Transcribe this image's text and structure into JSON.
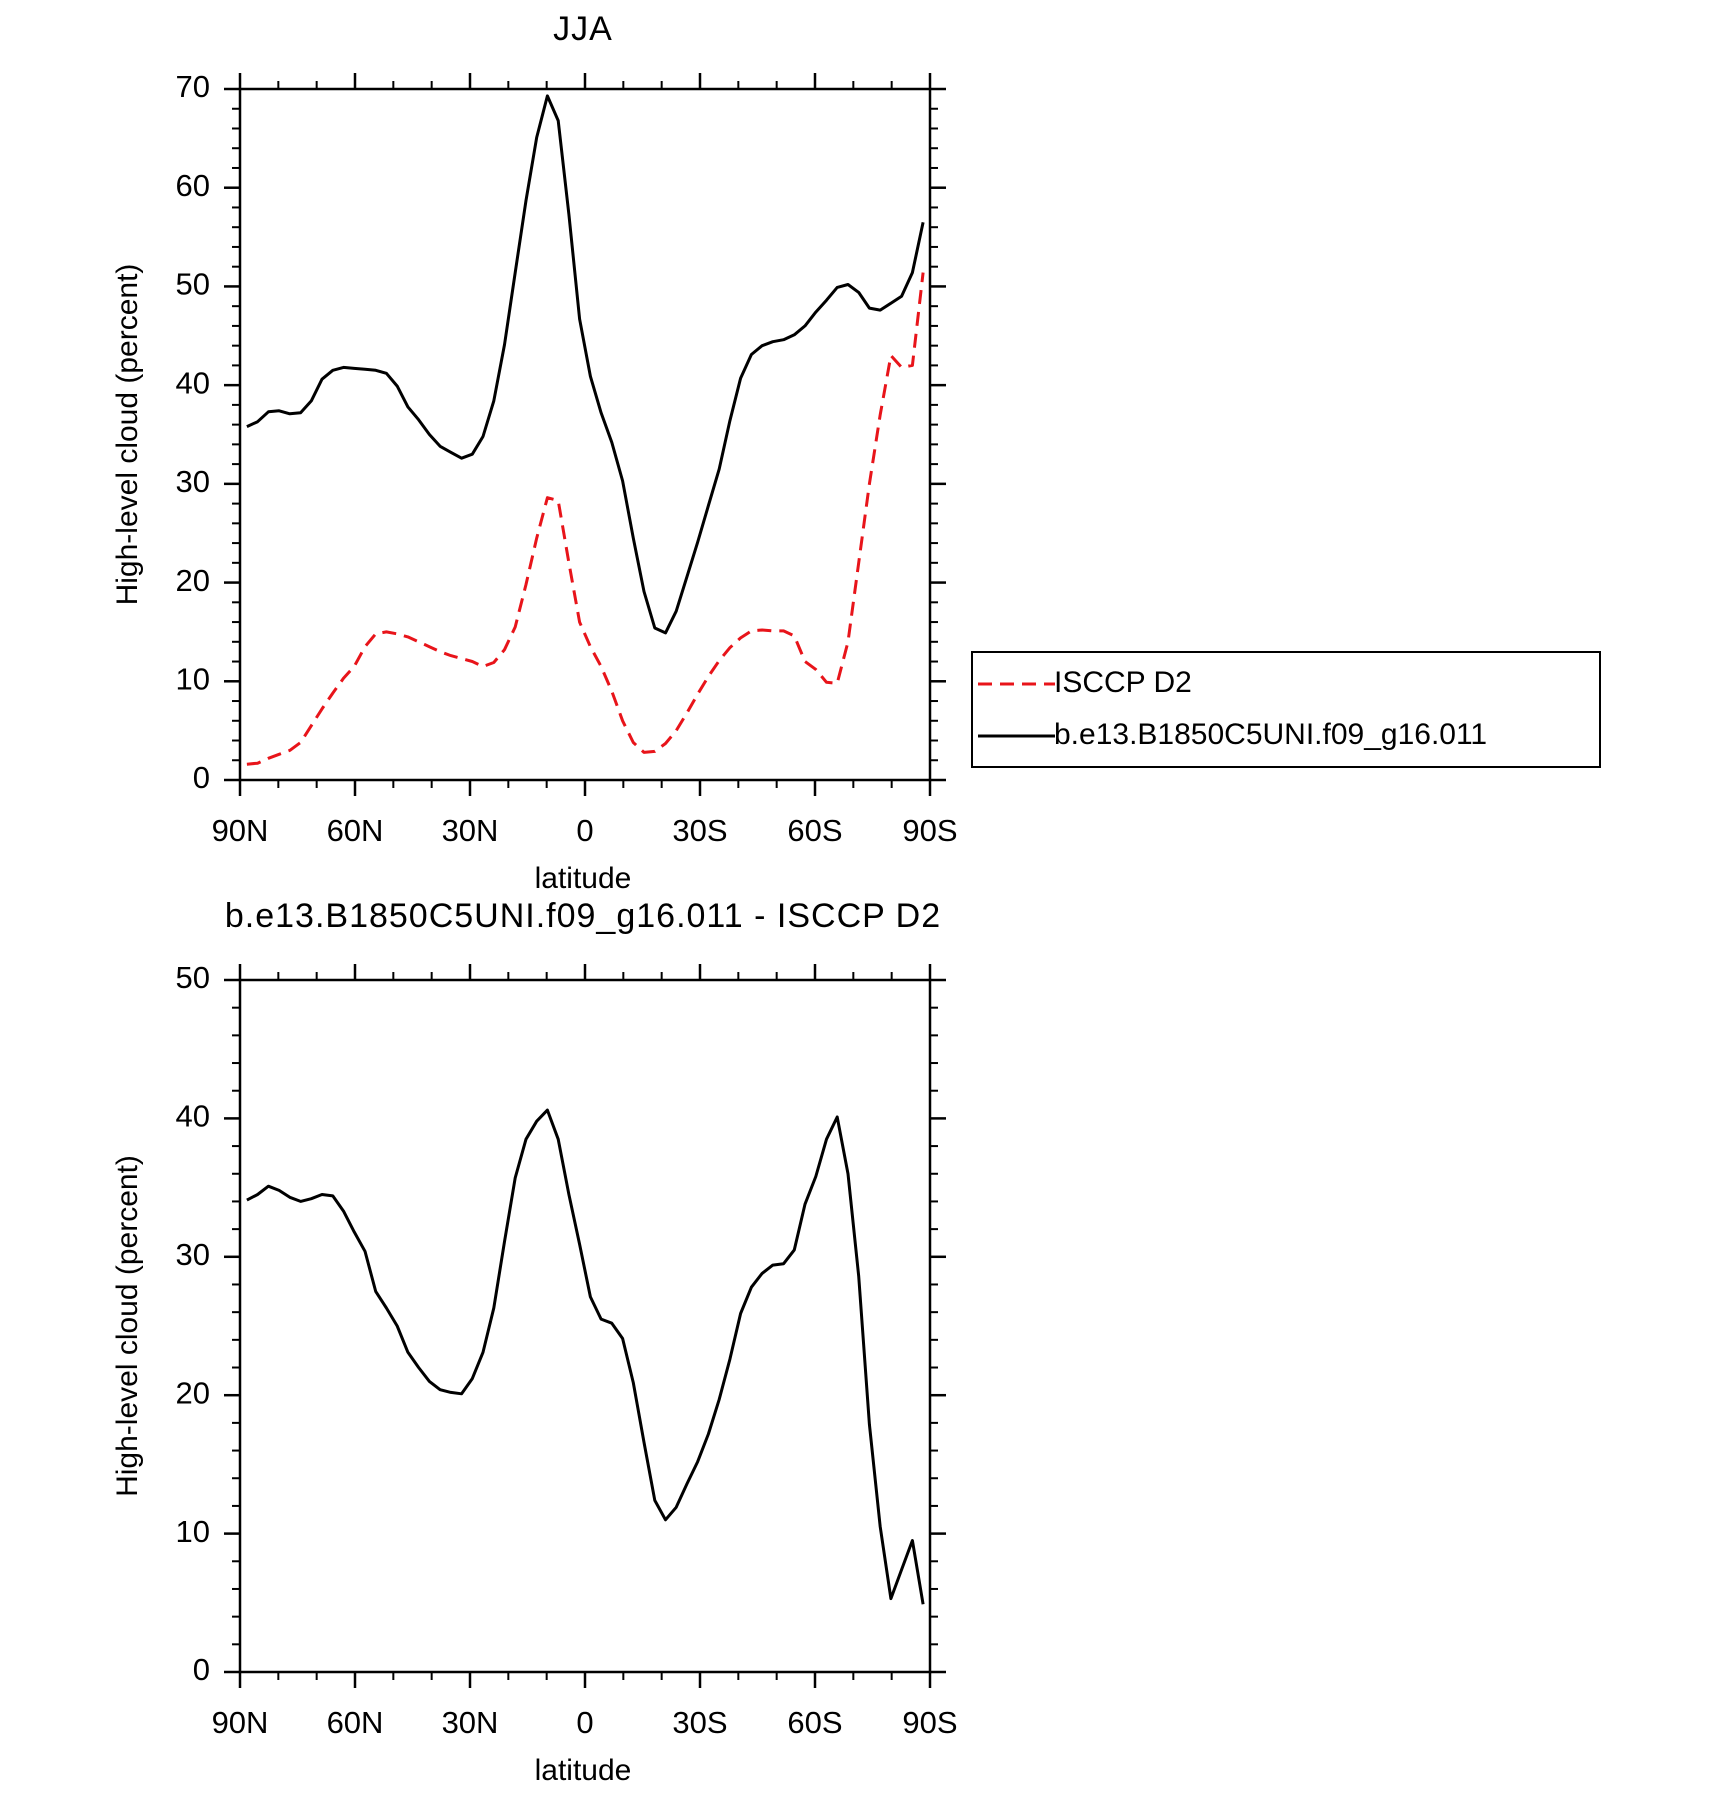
{
  "chart_data": [
    {
      "type": "line",
      "title": "JJA",
      "xlabel": "latitude",
      "ylabel": "High-level cloud (percent)",
      "x": [
        88.2,
        85.4,
        82.6,
        79.8,
        77.0,
        74.2,
        71.4,
        68.6,
        65.8,
        63.0,
        60.2,
        57.4,
        54.6,
        51.8,
        49.0,
        46.2,
        43.4,
        40.6,
        37.8,
        35.0,
        32.2,
        29.4,
        26.6,
        23.8,
        21.0,
        18.2,
        15.4,
        12.6,
        9.8,
        7.0,
        4.2,
        1.4,
        -1.4,
        -4.2,
        -7.0,
        -9.8,
        -12.6,
        -15.4,
        -18.2,
        -21.0,
        -23.8,
        -26.6,
        -29.4,
        -32.2,
        -35.0,
        -37.8,
        -40.6,
        -43.4,
        -46.2,
        -49.0,
        -51.8,
        -54.6,
        -57.4,
        -60.2,
        -63.0,
        -65.8,
        -68.6,
        -71.4,
        -74.2,
        -77.0,
        -79.8,
        -82.6,
        -85.4,
        -88.2
      ],
      "series": [
        {
          "name": "ISCCP D2",
          "color": "#e8141a",
          "line_style": "dashed",
          "values": [
            1.6,
            1.7,
            2.2,
            2.6,
            3.0,
            3.8,
            5.5,
            7.2,
            8.8,
            10.3,
            11.5,
            13.5,
            14.8,
            15.0,
            14.8,
            14.5,
            14.0,
            13.5,
            13.0,
            12.6,
            12.3,
            12.0,
            11.5,
            11.9,
            13.2,
            15.5,
            19.8,
            24.5,
            28.6,
            28.3,
            22.0,
            16.0,
            13.5,
            11.5,
            9.0,
            6.0,
            3.8,
            2.8,
            2.9,
            3.7,
            5.0,
            6.8,
            8.7,
            10.5,
            12.1,
            13.4,
            14.4,
            15.1,
            15.2,
            15.1,
            15.1,
            14.6,
            12.0,
            11.2,
            9.9,
            9.8,
            14.0,
            22.0,
            30.0,
            37.0,
            43.0,
            41.8,
            42.0,
            51.4
          ]
        },
        {
          "name": "b.e13.B1850C5UNI.f09_g16.011",
          "color": "#000000",
          "line_style": "solid",
          "values": [
            35.8,
            36.3,
            37.3,
            37.4,
            37.1,
            37.2,
            38.4,
            40.6,
            41.5,
            41.8,
            41.7,
            41.6,
            41.5,
            41.2,
            39.9,
            37.8,
            36.5,
            35.0,
            33.8,
            33.2,
            32.6,
            33.0,
            34.8,
            38.4,
            44.1,
            51.4,
            58.7,
            65.1,
            69.3,
            66.8,
            57.3,
            46.7,
            40.9,
            37.2,
            34.2,
            30.3,
            24.5,
            19.1,
            15.4,
            14.9,
            17.1,
            20.6,
            24.1,
            27.8,
            31.5,
            36.4,
            40.7,
            43.1,
            44.0,
            44.4,
            44.6,
            45.1,
            46.0,
            47.4,
            48.6,
            49.9,
            50.2,
            49.4,
            47.8,
            47.6,
            48.3,
            49.0,
            51.4,
            56.5
          ]
        }
      ],
      "xlim": [
        90,
        -90
      ],
      "xticks": [
        {
          "value": 90,
          "label": "90N"
        },
        {
          "value": 60,
          "label": "60N"
        },
        {
          "value": 30,
          "label": "30N"
        },
        0,
        {
          "value": -30,
          "label": "30S"
        },
        {
          "value": -60,
          "label": "60S"
        },
        {
          "value": -90,
          "label": "90S"
        }
      ],
      "ylim": [
        0,
        70
      ],
      "yticks": [
        0,
        10,
        20,
        30,
        40,
        50,
        60,
        70
      ],
      "legend": "right"
    },
    {
      "type": "line",
      "title": "b.e13.B1850C5UNI.f09_g16.011 - ISCCP D2",
      "xlabel": "latitude",
      "ylabel": "High-level cloud (percent)",
      "x": [
        88.2,
        85.4,
        82.6,
        79.8,
        77.0,
        74.2,
        71.4,
        68.6,
        65.8,
        63.0,
        60.2,
        57.4,
        54.6,
        51.8,
        49.0,
        46.2,
        43.4,
        40.6,
        37.8,
        35.0,
        32.2,
        29.4,
        26.6,
        23.8,
        21.0,
        18.2,
        15.4,
        12.6,
        9.8,
        7.0,
        4.2,
        1.4,
        -1.4,
        -4.2,
        -7.0,
        -9.8,
        -12.6,
        -15.4,
        -18.2,
        -21.0,
        -23.8,
        -26.6,
        -29.4,
        -32.2,
        -35.0,
        -37.8,
        -40.6,
        -43.4,
        -46.2,
        -49.0,
        -51.8,
        -54.6,
        -57.4,
        -60.2,
        -63.0,
        -65.8,
        -68.6,
        -71.4,
        -74.2,
        -77.0,
        -79.8,
        -82.6,
        -85.4,
        -88.2
      ],
      "values": [
        34.1,
        34.5,
        35.1,
        34.8,
        34.3,
        34.0,
        34.2,
        34.5,
        34.4,
        33.3,
        31.8,
        30.4,
        27.5,
        26.3,
        25.0,
        23.1,
        22.0,
        21.0,
        20.4,
        20.2,
        20.1,
        21.2,
        23.1,
        26.3,
        31.1,
        35.7,
        38.5,
        39.8,
        40.6,
        38.5,
        34.5,
        30.9,
        27.1,
        25.5,
        25.2,
        24.1,
        20.9,
        16.6,
        12.4,
        11.0,
        11.9,
        13.6,
        15.2,
        17.2,
        19.7,
        22.6,
        25.9,
        27.8,
        28.8,
        29.4,
        29.5,
        30.5,
        33.8,
        35.8,
        38.5,
        40.1,
        36.0,
        28.6,
        17.9,
        10.5,
        5.3,
        7.4,
        9.5,
        4.9
      ],
      "color": "#000000",
      "xlim": [
        90,
        -90
      ],
      "xticks": [
        {
          "value": 90,
          "label": "90N"
        },
        {
          "value": 60,
          "label": "60N"
        },
        {
          "value": 30,
          "label": "30N"
        },
        0,
        {
          "value": -30,
          "label": "30S"
        },
        {
          "value": -60,
          "label": "60S"
        },
        {
          "value": -90,
          "label": "90S"
        }
      ],
      "ylim": [
        0,
        50
      ],
      "yticks": [
        0,
        10,
        20,
        30,
        40,
        50
      ]
    }
  ]
}
